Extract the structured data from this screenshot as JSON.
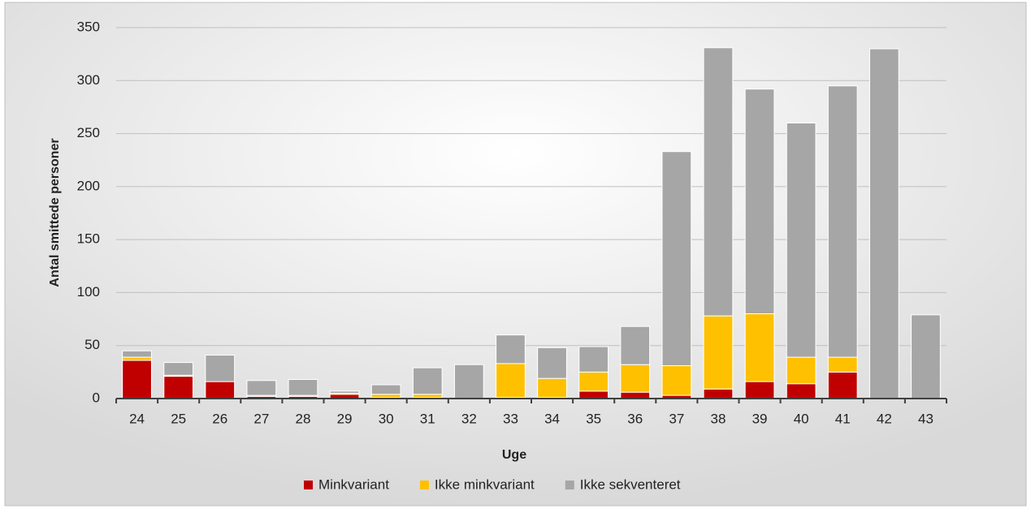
{
  "chart_data": {
    "type": "stacked-bar",
    "x_label": "Uge",
    "y_label": "Antal smittede personer",
    "categories": [
      "24",
      "25",
      "26",
      "27",
      "28",
      "29",
      "30",
      "31",
      "32",
      "33",
      "34",
      "35",
      "36",
      "37",
      "38",
      "39",
      "40",
      "41",
      "42",
      "43"
    ],
    "series": [
      {
        "name": "Minkvariant",
        "color": "#c00000",
        "values": [
          36,
          21,
          16,
          2,
          2,
          4,
          1,
          1,
          0,
          1,
          1,
          7,
          6,
          3,
          9,
          16,
          14,
          25,
          0,
          0
        ]
      },
      {
        "name": "Ikke minkvariant",
        "color": "#ffc000",
        "values": [
          3,
          1,
          0,
          1,
          1,
          1,
          3,
          3,
          0,
          32,
          18,
          18,
          26,
          28,
          69,
          64,
          25,
          14,
          0,
          0
        ]
      },
      {
        "name": "Ikke sekventeret",
        "color": "#a6a6a6",
        "values": [
          6,
          12,
          25,
          14,
          15,
          2,
          9,
          25,
          32,
          27,
          29,
          24,
          36,
          202,
          253,
          212,
          221,
          256,
          330,
          79
        ]
      }
    ],
    "ylim": [
      0,
      350
    ],
    "yticks": [
      0,
      50,
      100,
      150,
      200,
      250,
      300,
      350
    ],
    "grid": true,
    "legend": "bottom"
  }
}
